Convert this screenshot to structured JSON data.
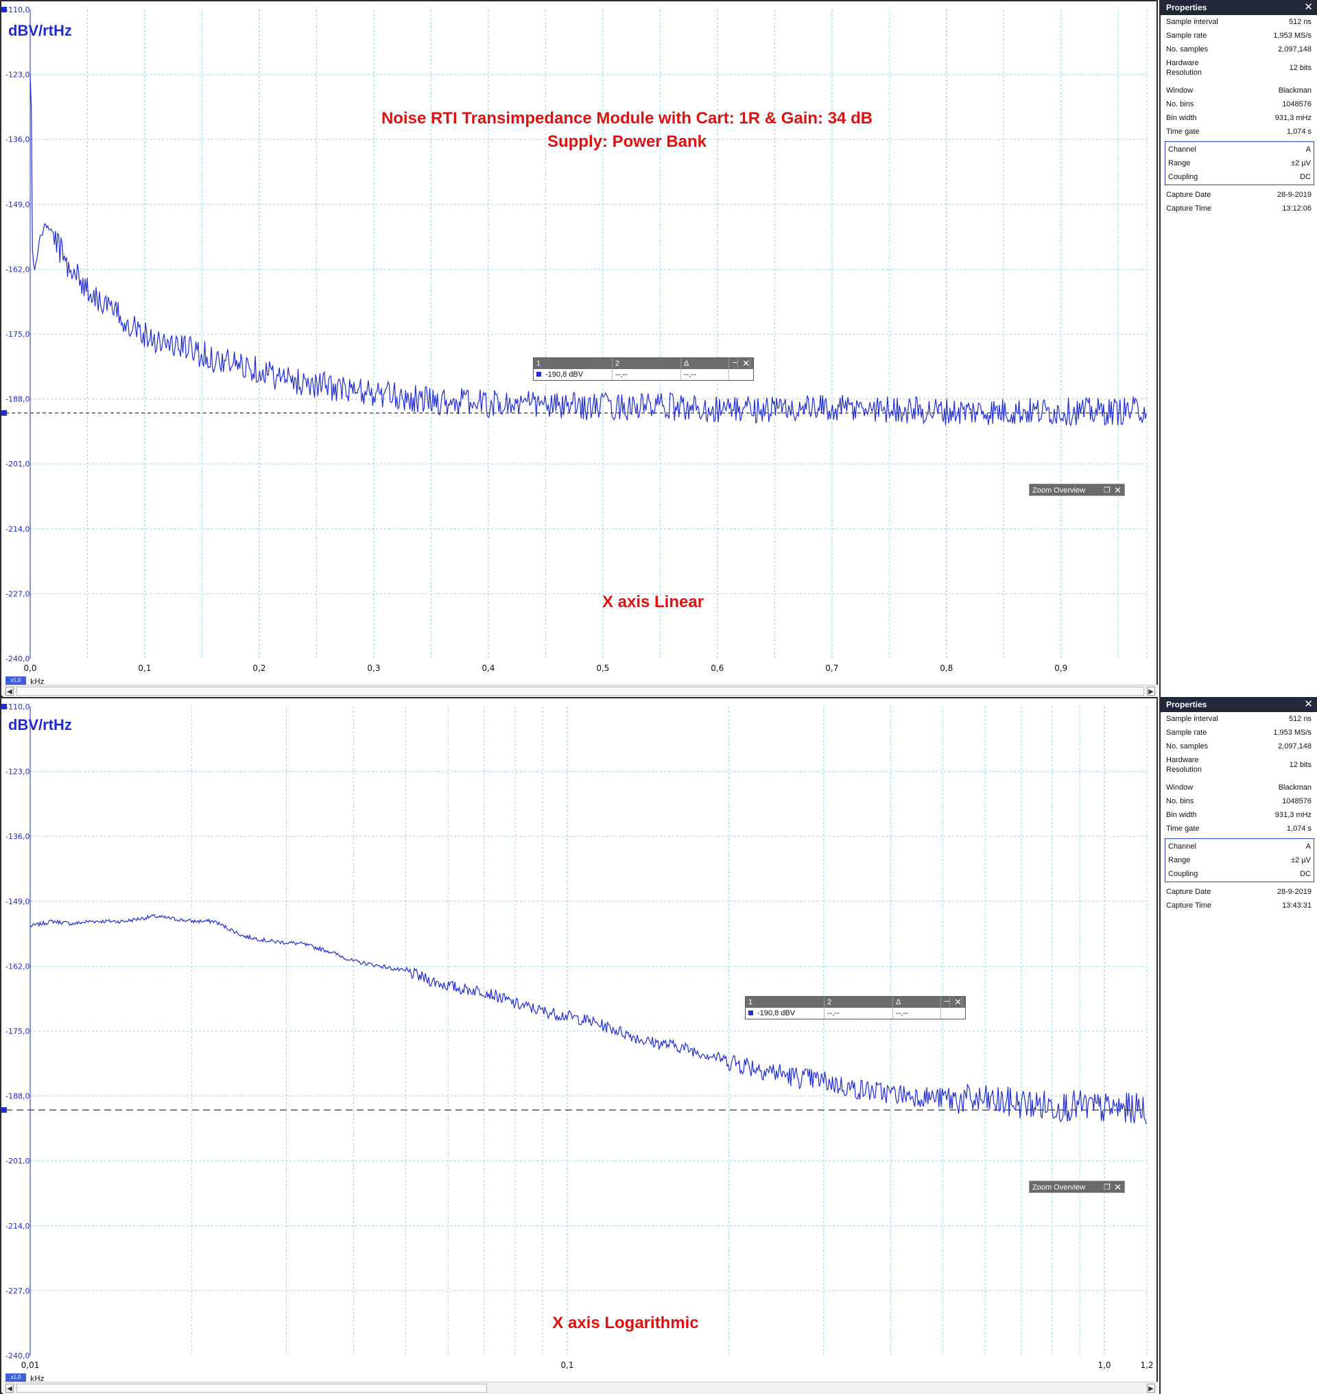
{
  "panels": [
    {
      "id": "top",
      "ylabel": "dBV/rtHz",
      "annotation": "X axis Linear",
      "title_line1": "Noise RTI Transimpedance Module with Cart: 1R & Gain: 34 dB",
      "title_line2": "Supply: Power Bank",
      "x_unit": "kHz",
      "x_scale_badge": "x1,0",
      "ruler": {
        "col1": "1",
        "col2": "2",
        "col3": "Δ",
        "val1": "-190,8 dBV",
        "val2": "--,--",
        "val3": "--,--"
      },
      "zoom_overview": "Zoom Overview",
      "properties": {
        "title": "Properties",
        "rows1": [
          {
            "label": "Sample interval",
            "value": "512 ns"
          },
          {
            "label": "Sample rate",
            "value": "1,953 MS/s"
          },
          {
            "label": "No. samples",
            "value": "2,097,148"
          },
          {
            "label": "Hardware Resolution",
            "value": "12 bits"
          },
          {
            "label": "Window",
            "value": "Blackman"
          },
          {
            "label": "No. bins",
            "value": "1048576"
          },
          {
            "label": "Bin width",
            "value": "931,3 mHz"
          },
          {
            "label": "Time gate",
            "value": "1,074 s"
          }
        ],
        "rows_channel": [
          {
            "label": "Channel",
            "value": "A"
          },
          {
            "label": "Range",
            "value": "±2 µV"
          },
          {
            "label": "Coupling",
            "value": "DC"
          }
        ],
        "rows2": [
          {
            "label": "Capture Date",
            "value": "28-9-2019"
          },
          {
            "label": "Capture Time",
            "value": "13:12:06"
          }
        ]
      }
    },
    {
      "id": "bottom",
      "ylabel": "dBV/rtHz",
      "annotation": "X axis Logarithmic",
      "x_unit": "kHz",
      "x_scale_badge": "x1,0",
      "ruler": {
        "col1": "1",
        "col2": "2",
        "col3": "Δ",
        "val1": "-190,8 dBV",
        "val2": "--,--",
        "val3": "--,--"
      },
      "zoom_overview": "Zoom Overview",
      "properties": {
        "title": "Properties",
        "rows1": [
          {
            "label": "Sample interval",
            "value": "512 ns"
          },
          {
            "label": "Sample rate",
            "value": "1,953 MS/s"
          },
          {
            "label": "No. samples",
            "value": "2,097,148"
          },
          {
            "label": "Hardware Resolution",
            "value": "12 bits"
          },
          {
            "label": "Window",
            "value": "Blackman"
          },
          {
            "label": "No. bins",
            "value": "1048576"
          },
          {
            "label": "Bin width",
            "value": "931,3 mHz"
          },
          {
            "label": "Time gate",
            "value": "1,074 s"
          }
        ],
        "rows_channel": [
          {
            "label": "Channel",
            "value": "A"
          },
          {
            "label": "Range",
            "value": "±2 µV"
          },
          {
            "label": "Coupling",
            "value": "DC"
          }
        ],
        "rows2": [
          {
            "label": "Capture Date",
            "value": "28-9-2019"
          },
          {
            "label": "Capture Time",
            "value": "13:43:31"
          }
        ]
      }
    }
  ],
  "colors": {
    "trace": "#1f2bd6",
    "grid": "#9fd0dc",
    "annotation": "#e01010",
    "ylabel": "#1f2bd6"
  },
  "chart_data": [
    {
      "type": "line",
      "xscale": "linear",
      "xlabel": "kHz",
      "ylabel": "dBV/rtHz",
      "xlim": [
        0.0,
        0.975
      ],
      "ylim": [
        -240.0,
        -110.0
      ],
      "yticks": [
        "-110,0",
        "-123,0",
        "-136,0",
        "-149,0",
        "-162,0",
        "-175,0",
        "-188,0",
        "-201,0",
        "-214,0",
        "-227,0",
        "-240,0"
      ],
      "xticks": [
        "0,0",
        "0,1",
        "0,2",
        "0,3",
        "0,4",
        "0,5",
        "0,6",
        "0,7",
        "0,8",
        "0,9"
      ],
      "ruler_level": -190.8,
      "grid": true,
      "series": [
        {
          "x": [
            0.0,
            0.001,
            0.002,
            0.004,
            0.008,
            0.012,
            0.015,
            0.02,
            0.03,
            0.04,
            0.05,
            0.06,
            0.07,
            0.08,
            0.09,
            0.1,
            0.11,
            0.12,
            0.13,
            0.14,
            0.15,
            0.16,
            0.17,
            0.18,
            0.19,
            0.2,
            0.21,
            0.22,
            0.23,
            0.24,
            0.25,
            0.26,
            0.27,
            0.28,
            0.29,
            0.3,
            0.32,
            0.34,
            0.36,
            0.38,
            0.4,
            0.42,
            0.44,
            0.46,
            0.48,
            0.5,
            0.55,
            0.6,
            0.65,
            0.7,
            0.75,
            0.8,
            0.85,
            0.9,
            0.95,
            0.975
          ],
          "y": [
            -123.0,
            -130.0,
            -158.0,
            -163.0,
            -156.0,
            -154.0,
            -153.0,
            -155.0,
            -160.0,
            -163.0,
            -166.0,
            -168.0,
            -170.0,
            -172.0,
            -173.0,
            -175.0,
            -176.0,
            -177.0,
            -177.5,
            -178.0,
            -179.0,
            -180.0,
            -180.5,
            -181.0,
            -181.5,
            -182.0,
            -183.0,
            -184.0,
            -184.5,
            -184.5,
            -185.0,
            -185.5,
            -186.0,
            -186.5,
            -186.5,
            -187.0,
            -187.5,
            -188.0,
            -188.5,
            -188.5,
            -189.0,
            -189.0,
            -189.0,
            -189.5,
            -189.5,
            -189.5,
            -189.5,
            -190.0,
            -190.0,
            -190.0,
            -190.0,
            -190.5,
            -190.5,
            -190.5,
            -190.5,
            -190.0
          ]
        }
      ]
    },
    {
      "type": "line",
      "xscale": "log",
      "xlabel": "kHz",
      "ylabel": "dBV/rtHz",
      "xlim": [
        0.01,
        1.2
      ],
      "ylim": [
        -240.0,
        -110.0
      ],
      "yticks": [
        "-110,0",
        "-123,0",
        "-136,0",
        "-149,0",
        "-162,0",
        "-175,0",
        "-188,0",
        "-201,0",
        "-214,0",
        "-227,0",
        "-240,0"
      ],
      "xticks": [
        "0,01",
        "0,1",
        "1,0",
        "1,2"
      ],
      "ruler_level": -190.8,
      "grid": true,
      "series": [
        {
          "x": [
            0.01,
            0.011,
            0.012,
            0.013,
            0.015,
            0.017,
            0.02,
            0.022,
            0.025,
            0.028,
            0.032,
            0.036,
            0.04,
            0.045,
            0.05,
            0.056,
            0.063,
            0.07,
            0.08,
            0.09,
            0.1,
            0.11,
            0.125,
            0.14,
            0.16,
            0.18,
            0.2,
            0.23,
            0.26,
            0.3,
            0.34,
            0.4,
            0.45,
            0.5,
            0.6,
            0.7,
            0.8,
            0.9,
            1.0,
            1.1,
            1.2
          ],
          "y": [
            -154.0,
            -153.0,
            -153.5,
            -153.0,
            -153.0,
            -152.0,
            -153.0,
            -153.0,
            -156.0,
            -157.0,
            -157.5,
            -159.0,
            -161.0,
            -162.0,
            -163.0,
            -165.0,
            -166.5,
            -167.0,
            -169.5,
            -171.0,
            -172.0,
            -173.0,
            -175.0,
            -177.0,
            -178.0,
            -179.5,
            -181.0,
            -182.5,
            -184.0,
            -185.0,
            -186.5,
            -187.5,
            -188.0,
            -188.5,
            -189.0,
            -189.5,
            -190.0,
            -190.0,
            -190.5,
            -190.5,
            -190.5
          ]
        }
      ]
    }
  ]
}
